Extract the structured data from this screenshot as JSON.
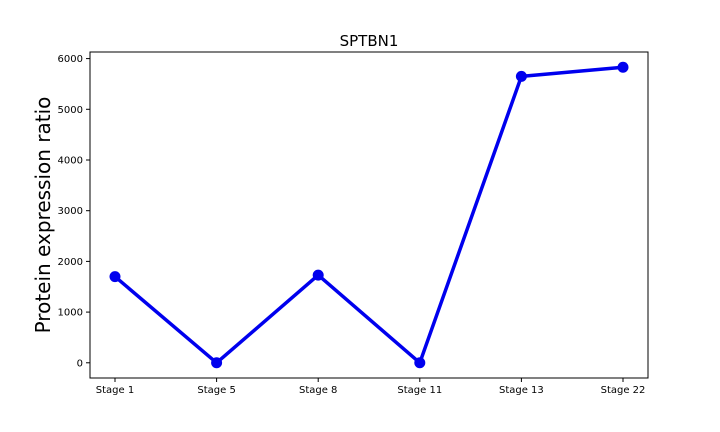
{
  "chart_data": {
    "type": "line",
    "title": "SPTBN1",
    "xlabel": "",
    "ylabel": "Protein expression ratio",
    "categories": [
      "Stage 1",
      "Stage 5",
      "Stage 8",
      "Stage 11",
      "Stage 13",
      "Stage 22"
    ],
    "series": [
      {
        "values": [
          1700,
          0,
          1730,
          0,
          5650,
          5830
        ],
        "color": "#0000ee",
        "marker": "circle"
      }
    ],
    "ylim": [
      -300,
      6130
    ],
    "yticks": [
      0,
      1000,
      2000,
      3000,
      4000,
      5000,
      6000
    ],
    "grid": false,
    "legend": "none"
  }
}
